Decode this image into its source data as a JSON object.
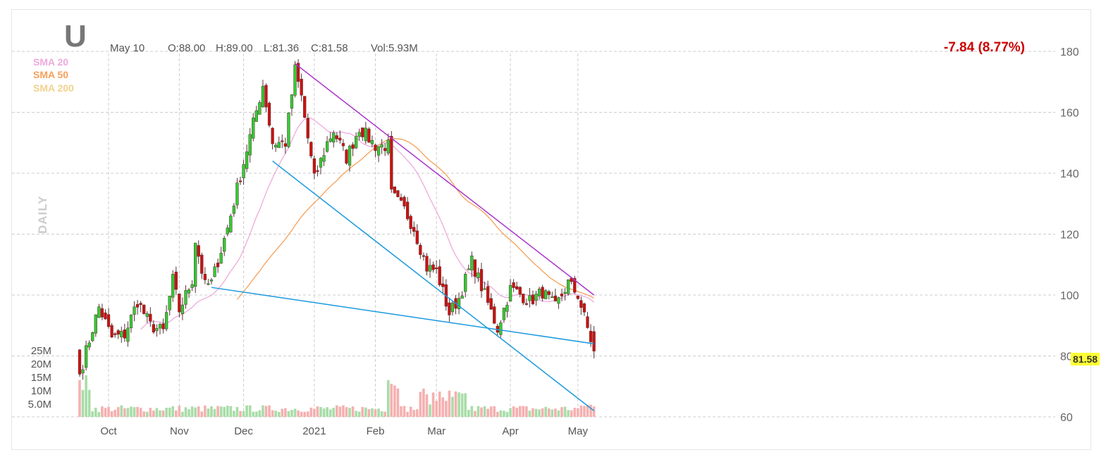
{
  "ticker": "U",
  "header": {
    "date": "May 10",
    "open": "O:88.00",
    "high": "H:89.00",
    "low": "L:81.36",
    "close": "C:81.58",
    "volume": "Vol:5.93M",
    "change": "-7.84 (8.77%)"
  },
  "timeframe_label": "DAILY",
  "indicators": [
    {
      "name": "SMA 20",
      "color": "#eeaadd"
    },
    {
      "name": "SMA 50",
      "color": "#f5a05a"
    },
    {
      "name": "SMA 200",
      "color": "#f2d28c"
    }
  ],
  "colors": {
    "up": "#33cc33",
    "down": "#cc1111",
    "vol_up": "#a8dda8",
    "vol_down": "#f5b0b0",
    "trend_purple": "#aa33cc",
    "trend_blue": "#1a99dd",
    "change": "#cc0000",
    "last_price_bg": "#ffff33"
  },
  "chart_data": {
    "type": "candlestick",
    "price_axis": {
      "min": 60,
      "max": 180,
      "ticks": [
        180,
        160,
        140,
        120,
        100,
        80,
        60
      ],
      "side": "right"
    },
    "volume_axis": {
      "ticks": [
        "25M",
        "20M",
        "15M",
        "10M",
        "5.0M"
      ],
      "max_millions": 25,
      "side": "left"
    },
    "x_labels": [
      {
        "label": "Oct",
        "date": "2020-10-01"
      },
      {
        "label": "Nov",
        "date": "2020-11-02"
      },
      {
        "label": "Dec",
        "date": "2020-12-01"
      },
      {
        "label": "2021",
        "date": "2021-01-04"
      },
      {
        "label": "Feb",
        "date": "2021-02-01"
      },
      {
        "label": "Mar",
        "date": "2021-03-01"
      },
      {
        "label": "Apr",
        "date": "2021-04-01"
      },
      {
        "label": "May",
        "date": "2021-05-03"
      }
    ],
    "last_price": "81.58",
    "grid": true,
    "legend": "top-left",
    "waypoints": [
      [
        "2020-09-18",
        74
      ],
      [
        "2020-09-24",
        89
      ],
      [
        "2020-09-28",
        96
      ],
      [
        "2020-10-02",
        86
      ],
      [
        "2020-10-08",
        87
      ],
      [
        "2020-10-14",
        98
      ],
      [
        "2020-10-20",
        90
      ],
      [
        "2020-10-26",
        88
      ],
      [
        "2020-10-29",
        105
      ],
      [
        "2020-11-02",
        95
      ],
      [
        "2020-11-06",
        105
      ],
      [
        "2020-11-09",
        118
      ],
      [
        "2020-11-12",
        103
      ],
      [
        "2020-11-16",
        104
      ],
      [
        "2020-11-23",
        122
      ],
      [
        "2020-11-27",
        135
      ],
      [
        "2020-12-03",
        152
      ],
      [
        "2020-12-09",
        169
      ],
      [
        "2020-12-14",
        150
      ],
      [
        "2020-12-18",
        150
      ],
      [
        "2020-12-23",
        174
      ],
      [
        "2020-12-28",
        165
      ],
      [
        "2021-01-04",
        138
      ],
      [
        "2021-01-08",
        150
      ],
      [
        "2021-01-12",
        154
      ],
      [
        "2021-01-19",
        145
      ],
      [
        "2021-01-25",
        155
      ],
      [
        "2021-02-01",
        149
      ],
      [
        "2021-02-05",
        149
      ],
      [
        "2021-02-08",
        133
      ],
      [
        "2021-02-12",
        128
      ],
      [
        "2021-02-18",
        122
      ],
      [
        "2021-02-24",
        109
      ],
      [
        "2021-03-01",
        108
      ],
      [
        "2021-03-05",
        94
      ],
      [
        "2021-03-10",
        99
      ],
      [
        "2021-03-16",
        111
      ],
      [
        "2021-03-22",
        100
      ],
      [
        "2021-03-26",
        89
      ],
      [
        "2021-04-01",
        102
      ],
      [
        "2021-04-06",
        101
      ],
      [
        "2021-04-12",
        98
      ],
      [
        "2021-04-16",
        101
      ],
      [
        "2021-04-22",
        96
      ],
      [
        "2021-04-28",
        104
      ],
      [
        "2021-05-03",
        100
      ],
      [
        "2021-05-06",
        89
      ],
      [
        "2021-05-10",
        81.58
      ]
    ],
    "trendlines": [
      {
        "color": "purple",
        "from": [
          "2020-12-23",
          176
        ],
        "to": [
          "2021-05-10",
          100
        ]
      },
      {
        "color": "blue",
        "from": [
          "2020-12-14",
          144
        ],
        "to": [
          "2021-05-10",
          62
        ]
      },
      {
        "color": "blue",
        "from": [
          "2020-11-16",
          102.5
        ],
        "to": [
          "2021-05-10",
          84
        ]
      }
    ]
  }
}
